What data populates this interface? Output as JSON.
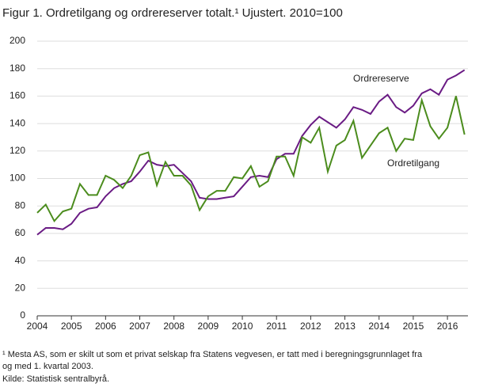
{
  "chart_data": {
    "type": "line",
    "title": "Figur 1. Ordretilgang og ordrereserver totalt.¹ Ujustert. 2010=100",
    "x": [
      2004,
      2004.25,
      2004.5,
      2004.75,
      2005,
      2005.25,
      2005.5,
      2005.75,
      2006,
      2006.25,
      2006.5,
      2006.75,
      2007,
      2007.25,
      2007.5,
      2007.75,
      2008,
      2008.25,
      2008.5,
      2008.75,
      2009,
      2009.25,
      2009.5,
      2009.75,
      2010,
      2010.25,
      2010.5,
      2010.75,
      2011,
      2011.25,
      2011.5,
      2011.75,
      2012,
      2012.25,
      2012.5,
      2012.75,
      2013,
      2013.25,
      2013.5,
      2013.75,
      2014,
      2014.25,
      2014.5,
      2014.75,
      2015,
      2015.25,
      2015.5,
      2015.75,
      2016,
      2016.25,
      2016.5
    ],
    "series": [
      {
        "name": "Ordrereserve",
        "color": "#6a1b84",
        "values": [
          59,
          64,
          64,
          63,
          67,
          75,
          78,
          79,
          87,
          93,
          96,
          98,
          105,
          113,
          110,
          109,
          110,
          104,
          98,
          86,
          85,
          85,
          86,
          87,
          94,
          101,
          102,
          101,
          114,
          118,
          118,
          131,
          139,
          145,
          141,
          137,
          143,
          152,
          150,
          147,
          156,
          161,
          152,
          148,
          153,
          162,
          165,
          161,
          172,
          175,
          179
        ]
      },
      {
        "name": "Ordretilgang",
        "color": "#4b8c1d",
        "values": [
          75,
          81,
          69,
          76,
          78,
          96,
          88,
          88,
          102,
          99,
          93,
          102,
          117,
          119,
          95,
          112,
          102,
          102,
          95,
          77,
          87,
          91,
          91,
          101,
          100,
          109,
          94,
          98,
          116,
          116,
          102,
          130,
          126,
          137,
          105,
          124,
          128,
          142,
          115,
          124,
          133,
          137,
          120,
          129,
          128,
          157,
          138,
          129,
          137,
          160,
          132
        ]
      }
    ],
    "xlim": [
      2004,
      2016.6
    ],
    "xticks": [
      2004,
      2005,
      2006,
      2007,
      2008,
      2009,
      2010,
      2011,
      2012,
      2013,
      2014,
      2015,
      2016
    ],
    "ylim": [
      0,
      200
    ],
    "yticks": [
      0,
      20,
      40,
      60,
      80,
      100,
      120,
      140,
      160,
      180,
      200
    ],
    "grid": true,
    "footnote": [
      "¹ Mesta AS, som er skilt ut som et privat selskap fra Statens vegvesen, er tatt med i beregningsgrunnlaget fra",
      "og med 1. kvartal 2003."
    ],
    "source": "Kilde: Statistisk sentralbyrå."
  }
}
